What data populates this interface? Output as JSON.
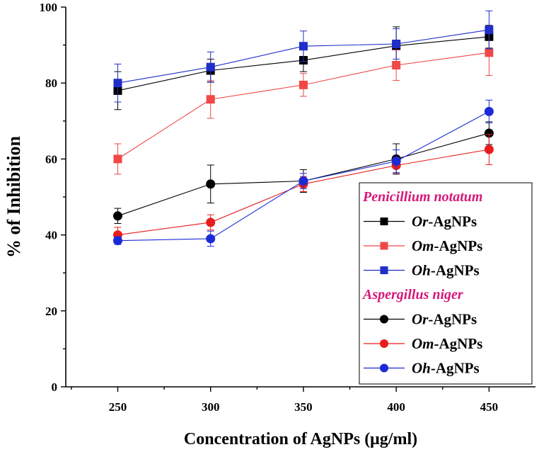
{
  "chart_data": {
    "type": "line",
    "title": "",
    "xlabel": "Concentration of AgNPs (μg/ml)",
    "ylabel": "% of Inhibition",
    "xlim": [
      222,
      475
    ],
    "ylim": [
      0,
      100
    ],
    "x_ticks": [
      250,
      300,
      350,
      400,
      450
    ],
    "y_ticks": [
      0,
      20,
      40,
      60,
      80,
      100
    ],
    "x": [
      250,
      300,
      350,
      400,
      450
    ],
    "legend_groups": [
      {
        "title": "Penicillium notatum",
        "color": "#d6177a",
        "marker": "square"
      },
      {
        "title": "Aspergillus niger",
        "color": "#d6177a",
        "marker": "circle"
      }
    ],
    "series": [
      {
        "name_italic": "Or",
        "name_rest": "-AgNPs",
        "group": 0,
        "marker": "square",
        "color": "#000000",
        "values": [
          78,
          83.3,
          86,
          89.8,
          92.2
        ],
        "errors": [
          5,
          3,
          3,
          5,
          3
        ]
      },
      {
        "name_italic": "Om",
        "name_rest": "-AgNPs",
        "group": 0,
        "marker": "square",
        "color": "#f04848",
        "values": [
          60,
          75.7,
          79.5,
          84.7,
          88
        ],
        "errors": [
          4,
          5,
          3,
          4,
          6
        ]
      },
      {
        "name_italic": "Oh",
        "name_rest": "-AgNPs",
        "group": 0,
        "marker": "square",
        "color": "#1f2fc8",
        "values": [
          80,
          84.2,
          89.7,
          90.3,
          94
        ],
        "errors": [
          5,
          4,
          4,
          4,
          5
        ]
      },
      {
        "name_italic": "Or",
        "name_rest": "-AgNPs",
        "group": 1,
        "marker": "circle",
        "color": "#000000",
        "values": [
          45,
          53.4,
          54.2,
          60,
          66.8
        ],
        "errors": [
          2,
          5,
          3,
          4,
          3
        ]
      },
      {
        "name_italic": "Om",
        "name_rest": "-AgNPs",
        "group": 1,
        "marker": "circle",
        "color": "#e81c1c",
        "values": [
          40,
          43.3,
          53.4,
          58.3,
          62.5
        ],
        "errors": [
          2,
          2,
          2,
          2,
          4
        ]
      },
      {
        "name_italic": "Oh",
        "name_rest": "-AgNPs",
        "group": 1,
        "marker": "circle",
        "color": "#1a2bd6",
        "values": [
          38.5,
          39,
          54.2,
          59.4,
          72.5
        ],
        "errors": [
          1,
          2,
          2,
          3,
          3
        ]
      }
    ]
  }
}
